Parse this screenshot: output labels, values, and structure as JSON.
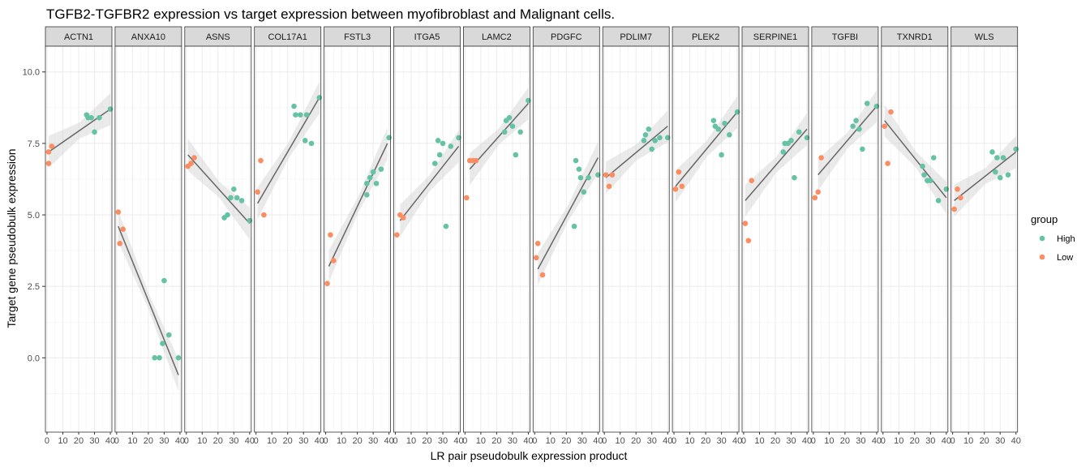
{
  "chart_data": {
    "type": "scatter",
    "title": "TGFB2-TGFBR2 expression vs target expression between myofibroblast and Malignant cells.",
    "xlabel": "LR pair pseudobulk expression product",
    "ylabel": "Target gene pseudobulk expression",
    "xlim": [
      -1,
      41
    ],
    "ylim": [
      -2.6,
      10.9
    ],
    "x_ticks": [
      0,
      10,
      20,
      30,
      40
    ],
    "y_ticks": [
      0.0,
      2.5,
      5.0,
      7.5,
      10.0
    ],
    "y_tick_labels": [
      "0.0",
      "2.5",
      "5.0",
      "7.5",
      "10.0"
    ],
    "grid": true,
    "legend": {
      "title": "group",
      "position": "right",
      "entries": [
        {
          "label": "High",
          "color": "#66c2a5"
        },
        {
          "label": "Low",
          "color": "#fc8d62"
        }
      ]
    },
    "colors": {
      "High": "#66c2a5",
      "Low": "#fc8d62",
      "fit": "#666666",
      "band": "#d0d0d0"
    },
    "facets": [
      {
        "name": "ACTN1",
        "points": [
          [
            1,
            6.8,
            "Low"
          ],
          [
            1,
            7.2,
            "Low"
          ],
          [
            3,
            7.4,
            "Low"
          ],
          [
            25,
            8.5,
            "High"
          ],
          [
            26,
            8.4,
            "High"
          ],
          [
            28,
            8.4,
            "High"
          ],
          [
            30,
            7.9,
            "High"
          ],
          [
            33,
            8.4,
            "High"
          ],
          [
            40,
            8.7,
            "High"
          ]
        ],
        "fit": [
          [
            1,
            7.2
          ],
          [
            40,
            8.7
          ]
        ]
      },
      {
        "name": "ANXA10",
        "points": [
          [
            1,
            5.1,
            "Low"
          ],
          [
            2,
            4.0,
            "Low"
          ],
          [
            4,
            4.5,
            "Low"
          ],
          [
            24,
            0.0,
            "High"
          ],
          [
            27,
            0.0,
            "High"
          ],
          [
            29,
            0.5,
            "High"
          ],
          [
            30,
            2.7,
            "High"
          ],
          [
            33,
            0.8,
            "High"
          ],
          [
            39,
            0.0,
            "High"
          ]
        ],
        "fit": [
          [
            1,
            4.6
          ],
          [
            39,
            -0.6
          ]
        ]
      },
      {
        "name": "ASNS",
        "points": [
          [
            1,
            6.7,
            "Low"
          ],
          [
            3,
            6.8,
            "Low"
          ],
          [
            5,
            7.0,
            "Low"
          ],
          [
            24,
            4.9,
            "High"
          ],
          [
            26,
            5.0,
            "High"
          ],
          [
            28,
            5.6,
            "High"
          ],
          [
            30,
            5.9,
            "High"
          ],
          [
            32,
            5.6,
            "High"
          ],
          [
            35,
            5.5,
            "High"
          ],
          [
            40,
            4.8,
            "High"
          ]
        ],
        "fit": [
          [
            1,
            7.1
          ],
          [
            40,
            4.7
          ]
        ]
      },
      {
        "name": "COL17A1",
        "points": [
          [
            1,
            5.8,
            "Low"
          ],
          [
            3,
            6.9,
            "Low"
          ],
          [
            5,
            5.0,
            "Low"
          ],
          [
            24,
            8.8,
            "High"
          ],
          [
            25,
            8.5,
            "High"
          ],
          [
            28,
            8.5,
            "High"
          ],
          [
            31,
            7.6,
            "High"
          ],
          [
            32,
            8.5,
            "High"
          ],
          [
            35,
            7.5,
            "High"
          ],
          [
            40,
            9.1,
            "High"
          ]
        ],
        "fit": [
          [
            1,
            5.4
          ],
          [
            40,
            9.1
          ]
        ]
      },
      {
        "name": "FSTL3",
        "points": [
          [
            1,
            2.6,
            "Low"
          ],
          [
            3,
            4.3,
            "Low"
          ],
          [
            5,
            3.4,
            "Low"
          ],
          [
            26,
            5.7,
            "High"
          ],
          [
            26,
            6.1,
            "High"
          ],
          [
            28,
            6.3,
            "High"
          ],
          [
            30,
            6.5,
            "High"
          ],
          [
            32,
            6.1,
            "High"
          ],
          [
            35,
            6.6,
            "High"
          ],
          [
            40,
            7.7,
            "High"
          ]
        ],
        "fit": [
          [
            2,
            3.2
          ],
          [
            39,
            7.5
          ]
        ]
      },
      {
        "name": "ITGA5",
        "points": [
          [
            1,
            4.3,
            "Low"
          ],
          [
            3,
            5.0,
            "Low"
          ],
          [
            5,
            4.9,
            "Low"
          ],
          [
            25,
            6.8,
            "High"
          ],
          [
            27,
            7.6,
            "High"
          ],
          [
            28,
            7.1,
            "High"
          ],
          [
            30,
            7.5,
            "High"
          ],
          [
            32,
            4.6,
            "High"
          ],
          [
            35,
            7.4,
            "High"
          ],
          [
            40,
            7.7,
            "High"
          ]
        ],
        "fit": [
          [
            3,
            4.8
          ],
          [
            40,
            7.4
          ]
        ]
      },
      {
        "name": "LAMC2",
        "points": [
          [
            1,
            5.6,
            "Low"
          ],
          [
            3,
            6.9,
            "Low"
          ],
          [
            5,
            6.9,
            "Low"
          ],
          [
            7,
            6.9,
            "Low"
          ],
          [
            25,
            7.9,
            "High"
          ],
          [
            26,
            8.3,
            "High"
          ],
          [
            28,
            8.4,
            "High"
          ],
          [
            30,
            8.1,
            "High"
          ],
          [
            32,
            7.1,
            "High"
          ],
          [
            35,
            7.9,
            "High"
          ],
          [
            40,
            9.0,
            "High"
          ]
        ],
        "fit": [
          [
            3,
            6.6
          ],
          [
            40,
            8.9
          ]
        ]
      },
      {
        "name": "PDGFC",
        "points": [
          [
            1,
            3.5,
            "Low"
          ],
          [
            2,
            4.0,
            "Low"
          ],
          [
            5,
            2.9,
            "Low"
          ],
          [
            25,
            4.6,
            "High"
          ],
          [
            26,
            6.9,
            "High"
          ],
          [
            28,
            6.6,
            "High"
          ],
          [
            29,
            6.3,
            "High"
          ],
          [
            31,
            5.8,
            "High"
          ],
          [
            34,
            6.3,
            "High"
          ],
          [
            40,
            6.4,
            "High"
          ]
        ],
        "fit": [
          [
            2,
            3.1
          ],
          [
            40,
            7.0
          ]
        ]
      },
      {
        "name": "PDLIM7",
        "points": [
          [
            1,
            6.4,
            "Low"
          ],
          [
            3,
            6.0,
            "Low"
          ],
          [
            5,
            6.4,
            "Low"
          ],
          [
            25,
            7.6,
            "High"
          ],
          [
            26,
            7.8,
            "High"
          ],
          [
            28,
            8.0,
            "High"
          ],
          [
            30,
            7.3,
            "High"
          ],
          [
            32,
            7.6,
            "High"
          ],
          [
            35,
            7.7,
            "High"
          ],
          [
            40,
            7.7,
            "High"
          ]
        ],
        "fit": [
          [
            1,
            6.3
          ],
          [
            40,
            8.1
          ]
        ]
      },
      {
        "name": "PLEK2",
        "points": [
          [
            1,
            5.9,
            "Low"
          ],
          [
            3,
            6.5,
            "Low"
          ],
          [
            5,
            6.0,
            "Low"
          ],
          [
            25,
            8.3,
            "High"
          ],
          [
            26,
            8.1,
            "High"
          ],
          [
            28,
            8.0,
            "High"
          ],
          [
            30,
            7.1,
            "High"
          ],
          [
            32,
            8.2,
            "High"
          ],
          [
            35,
            7.8,
            "High"
          ],
          [
            40,
            8.6,
            "High"
          ]
        ],
        "fit": [
          [
            1,
            6.0
          ],
          [
            40,
            8.6
          ]
        ]
      },
      {
        "name": "SERPINE1",
        "points": [
          [
            1,
            4.7,
            "Low"
          ],
          [
            3,
            4.1,
            "Low"
          ],
          [
            5,
            6.2,
            "Low"
          ],
          [
            25,
            7.2,
            "High"
          ],
          [
            26,
            7.5,
            "High"
          ],
          [
            28,
            7.5,
            "High"
          ],
          [
            30,
            7.6,
            "High"
          ],
          [
            32,
            6.3,
            "High"
          ],
          [
            35,
            7.9,
            "High"
          ],
          [
            40,
            7.7,
            "High"
          ]
        ],
        "fit": [
          [
            1,
            5.5
          ],
          [
            40,
            8.0
          ]
        ]
      },
      {
        "name": "TGFBI",
        "points": [
          [
            1,
            5.6,
            "Low"
          ],
          [
            3,
            5.8,
            "Low"
          ],
          [
            5,
            7.0,
            "Low"
          ],
          [
            25,
            8.1,
            "High"
          ],
          [
            27,
            8.3,
            "High"
          ],
          [
            29,
            8.0,
            "High"
          ],
          [
            31,
            7.3,
            "High"
          ],
          [
            34,
            8.9,
            "High"
          ],
          [
            40,
            8.8,
            "High"
          ]
        ],
        "fit": [
          [
            3,
            6.4
          ],
          [
            40,
            8.8
          ]
        ]
      },
      {
        "name": "TXNRD1",
        "points": [
          [
            1,
            8.1,
            "Low"
          ],
          [
            3,
            6.8,
            "Low"
          ],
          [
            5,
            8.6,
            "Low"
          ],
          [
            25,
            6.7,
            "High"
          ],
          [
            26,
            6.4,
            "High"
          ],
          [
            28,
            6.2,
            "High"
          ],
          [
            30,
            6.2,
            "High"
          ],
          [
            32,
            7.0,
            "High"
          ],
          [
            35,
            5.5,
            "High"
          ],
          [
            40,
            5.9,
            "High"
          ]
        ],
        "fit": [
          [
            1,
            8.3
          ],
          [
            40,
            5.6
          ]
        ]
      },
      {
        "name": "WLS",
        "points": [
          [
            1,
            5.2,
            "Low"
          ],
          [
            3,
            5.9,
            "Low"
          ],
          [
            5,
            5.6,
            "Low"
          ],
          [
            25,
            7.2,
            "High"
          ],
          [
            27,
            6.5,
            "High"
          ],
          [
            28,
            7.0,
            "High"
          ],
          [
            30,
            6.3,
            "High"
          ],
          [
            32,
            7.0,
            "High"
          ],
          [
            35,
            6.4,
            "High"
          ],
          [
            40,
            7.3,
            "High"
          ]
        ],
        "fit": [
          [
            1,
            5.5
          ],
          [
            40,
            7.2
          ]
        ]
      }
    ]
  }
}
